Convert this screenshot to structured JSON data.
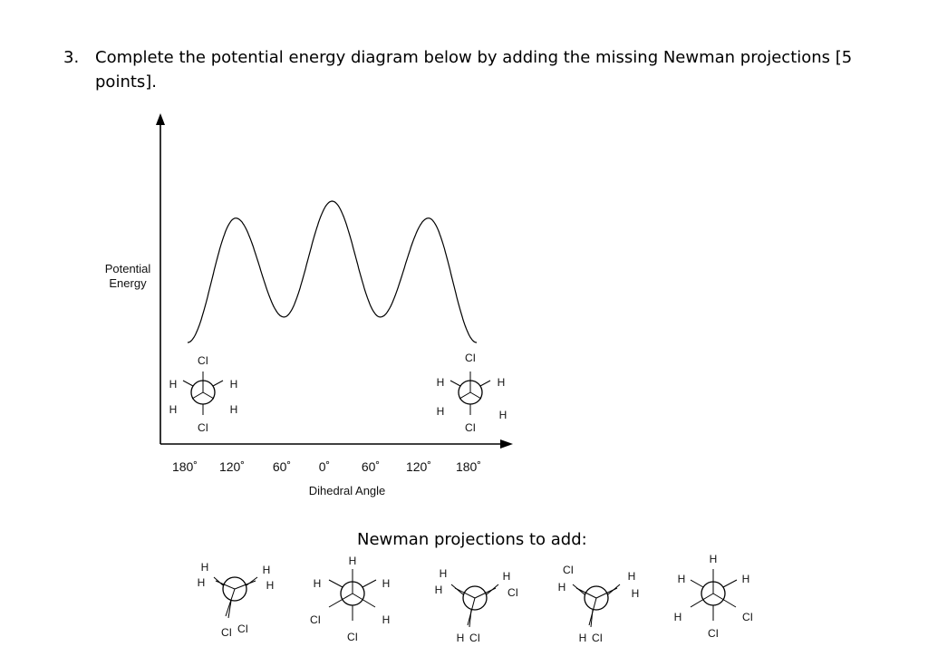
{
  "question": {
    "number": "3.",
    "text": "Complete the potential energy diagram below by adding the missing Newman projections [5 points]."
  },
  "diagram": {
    "y_axis_label_line1": "Potential",
    "y_axis_label_line2": "Energy",
    "x_axis_label": "Dihedral Angle",
    "x_ticks": [
      "180˚",
      "120˚",
      "60˚",
      "0˚",
      "60˚",
      "120˚",
      "180˚"
    ],
    "energy_curve": {
      "angles_deg": [
        -180,
        -120,
        -60,
        0,
        60,
        120,
        180
      ],
      "relative_energy": [
        0.0,
        0.88,
        0.18,
        1.0,
        0.18,
        0.88,
        0.0
      ]
    },
    "given_projections": [
      {
        "front": [
          "Cl",
          "H",
          "H"
        ],
        "back": [
          "H",
          "H",
          "Cl"
        ],
        "front_labels": [
          "Cl",
          "H",
          "H"
        ]
      },
      {
        "front": [
          "Cl",
          "H",
          "H"
        ],
        "back": [
          "H",
          "H",
          "Cl"
        ]
      }
    ],
    "labels": {
      "cl": "Cl",
      "h": "H",
      "ci": "CI"
    }
  },
  "subheading": "Newman projections to add:"
}
